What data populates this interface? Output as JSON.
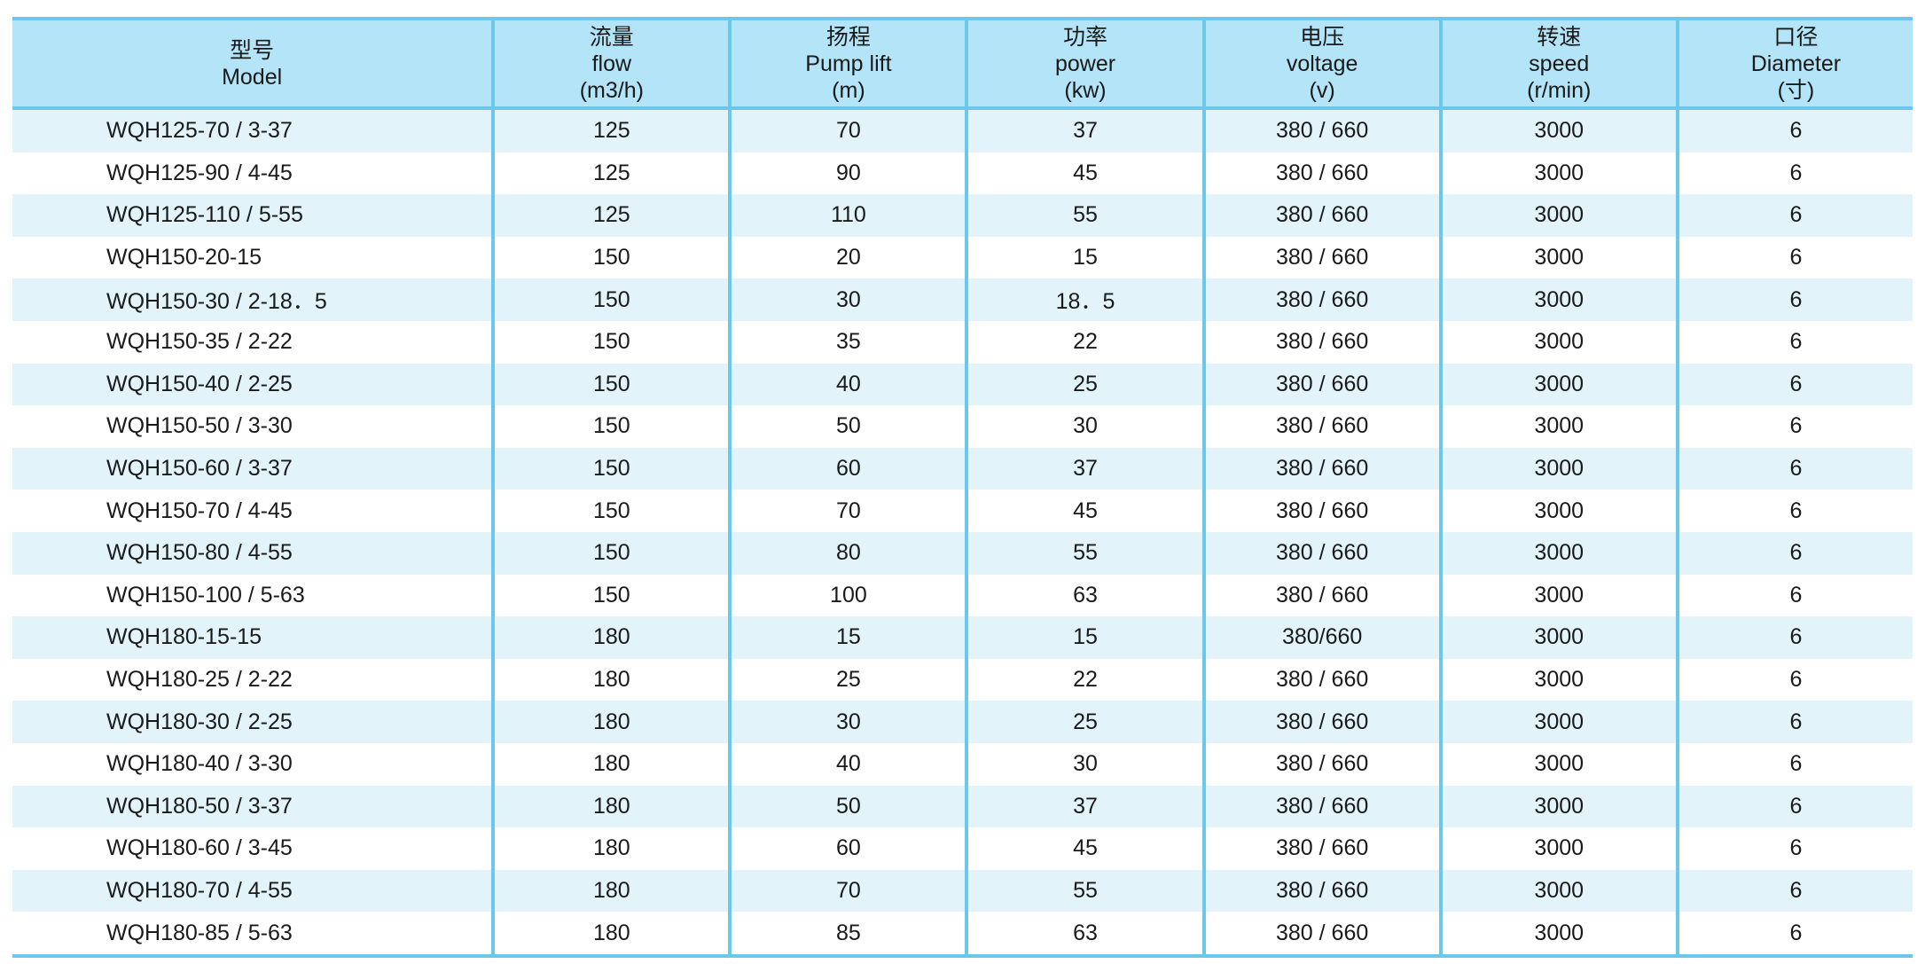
{
  "table": {
    "headers": [
      {
        "zh": "型号",
        "en": "Model",
        "unit": ""
      },
      {
        "zh": "流量",
        "en": "flow",
        "unit": "(m3/h)"
      },
      {
        "zh": "扬程",
        "en": "Pump lift",
        "unit": "(m)"
      },
      {
        "zh": "功率",
        "en": "power",
        "unit": "(kw)"
      },
      {
        "zh": "电压",
        "en": "voltage",
        "unit": "(v)"
      },
      {
        "zh": "转速",
        "en": "speed",
        "unit": "(r/min)"
      },
      {
        "zh": "口径",
        "en": "Diameter",
        "unit": "(寸)"
      }
    ],
    "rows": [
      [
        "WQH125-70 / 3-37",
        "125",
        "70",
        "37",
        "380 / 660",
        "3000",
        "6"
      ],
      [
        "WQH125-90 / 4-45",
        "125",
        "90",
        "45",
        "380 / 660",
        "3000",
        "6"
      ],
      [
        "WQH125-110 / 5-55",
        "125",
        "110",
        "55",
        "380 / 660",
        "3000",
        "6"
      ],
      [
        "WQH150-20-15",
        "150",
        "20",
        "15",
        "380 / 660",
        "3000",
        "6"
      ],
      [
        "WQH150-30 / 2-18．5",
        "150",
        "30",
        "18．5",
        "380 / 660",
        "3000",
        "6"
      ],
      [
        "WQH150-35 / 2-22",
        "150",
        "35",
        "22",
        "380 / 660",
        "3000",
        "6"
      ],
      [
        "WQH150-40 / 2-25",
        "150",
        "40",
        "25",
        "380 / 660",
        "3000",
        "6"
      ],
      [
        "WQH150-50 / 3-30",
        "150",
        "50",
        "30",
        "380 / 660",
        "3000",
        "6"
      ],
      [
        "WQH150-60 / 3-37",
        "150",
        "60",
        "37",
        "380 / 660",
        "3000",
        "6"
      ],
      [
        "WQH150-70 / 4-45",
        "150",
        "70",
        "45",
        "380 / 660",
        "3000",
        "6"
      ],
      [
        "WQH150-80 / 4-55",
        "150",
        "80",
        "55",
        "380 / 660",
        "3000",
        "6"
      ],
      [
        "WQH150-100 / 5-63",
        "150",
        "100",
        "63",
        "380 / 660",
        "3000",
        "6"
      ],
      [
        "WQH180-15-15",
        "180",
        "15",
        "15",
        "380/660",
        "3000",
        "6"
      ],
      [
        "WQH180-25 / 2-22",
        "180",
        "25",
        "22",
        "380 / 660",
        "3000",
        "6"
      ],
      [
        "WQH180-30 / 2-25",
        "180",
        "30",
        "25",
        "380 / 660",
        "3000",
        "6"
      ],
      [
        "WQH180-40 / 3-30",
        "180",
        "40",
        "30",
        "380 / 660",
        "3000",
        "6"
      ],
      [
        "WQH180-50 / 3-37",
        "180",
        "50",
        "37",
        "380 / 660",
        "3000",
        "6"
      ],
      [
        "WQH180-60 / 3-45",
        "180",
        "60",
        "45",
        "380 / 660",
        "3000",
        "6"
      ],
      [
        "WQH180-70 / 4-55",
        "180",
        "70",
        "55",
        "380 / 660",
        "3000",
        "6"
      ],
      [
        "WQH180-85 / 5-63",
        "180",
        "85",
        "63",
        "380 / 660",
        "3000",
        "6"
      ]
    ]
  },
  "colors": {
    "header_bg": "#b3e4f7",
    "border": "#6cc8ea",
    "row_alt_bg": "#e2f3fa",
    "row_bg": "#ffffff"
  }
}
